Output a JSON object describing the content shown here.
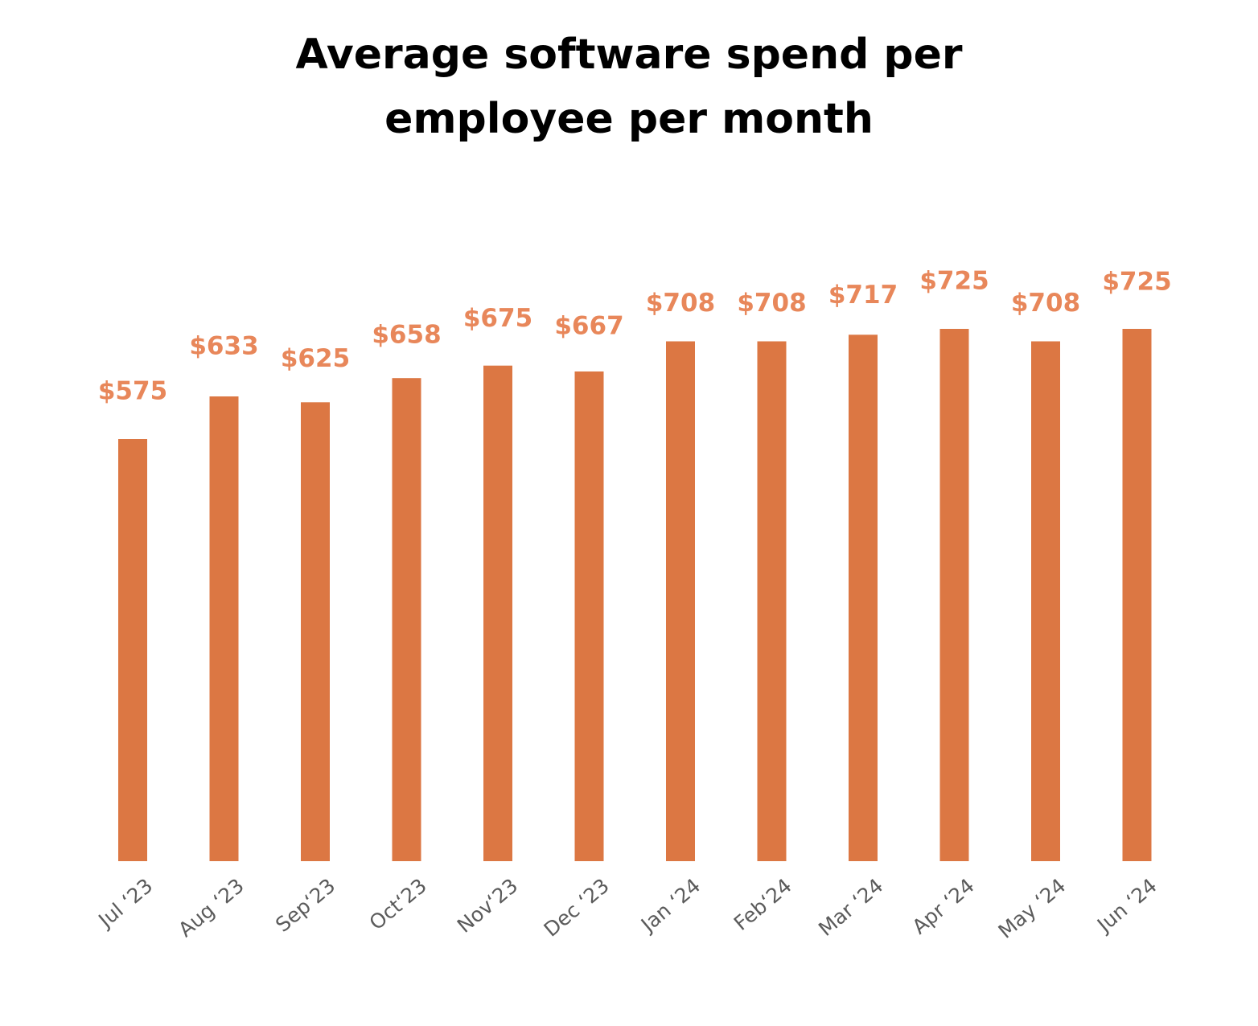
{
  "chart_data": {
    "type": "bar",
    "title_lines": [
      "Average software spend per",
      "employee per month"
    ],
    "categories": [
      "Jul ‘23",
      "Aug ‘23",
      "Sep‘23",
      "Oct‘23",
      "Nov‘23",
      "Dec ‘23",
      "Jan ‘24",
      "Feb‘24",
      "Mar ‘24",
      "Apr ‘24",
      "May ‘24",
      "Jun ‘24"
    ],
    "values": [
      575,
      633,
      625,
      658,
      675,
      667,
      708,
      708,
      717,
      725,
      708,
      725
    ],
    "data_labels": [
      "$575",
      "$633",
      "$625",
      "$658",
      "$675",
      "$667",
      "$708",
      "$708",
      "$717",
      "$725",
      "$708",
      "$725"
    ],
    "xlabel": "",
    "ylabel": "",
    "ylim": [
      0,
      725
    ],
    "grid": false,
    "legend": "none",
    "colors": {
      "bar": "#dc7743",
      "data_label": "#e8875a",
      "tick_label": "#5b5b5b",
      "title": "#000000"
    }
  }
}
